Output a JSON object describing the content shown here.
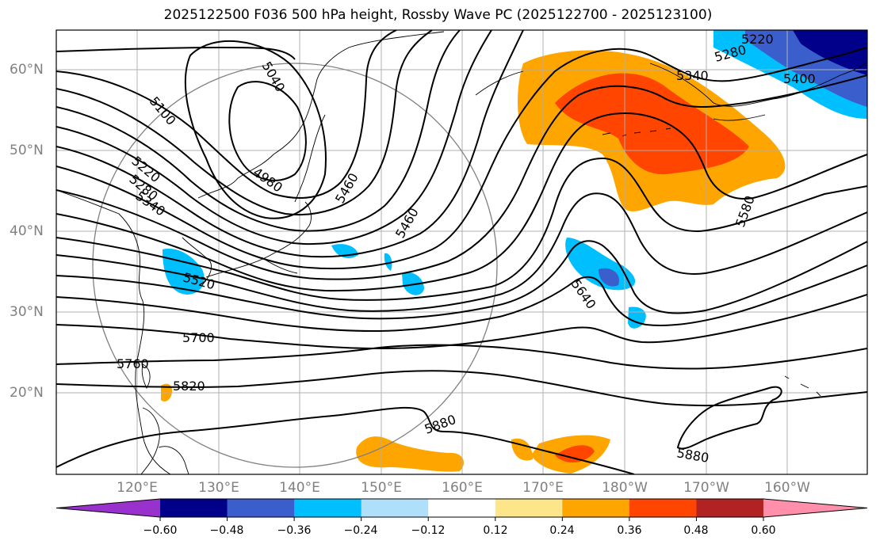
{
  "title": "2025122500 F036 500 hPa height, Rossby Wave PC (2025122700 - 2025123100)",
  "lat_labels": [
    "60°N",
    "50°N",
    "40°N",
    "30°N",
    "20°N"
  ],
  "lon_labels": [
    "120°E",
    "130°E",
    "140°E",
    "150°E",
    "160°E",
    "170°E",
    "180°W",
    "170°W",
    "160°W"
  ],
  "contour_labels": [
    "5040",
    "5100",
    "4980",
    "5220",
    "5280",
    "5340",
    "5460",
    "5460",
    "5520",
    "5580",
    "5640",
    "5700",
    "5760",
    "5820",
    "5880",
    "5880",
    "5220",
    "5280",
    "5340",
    "5400"
  ],
  "colorbar": {
    "ticks": [
      "−0.60",
      "−0.48",
      "−0.36",
      "−0.24",
      "−0.12",
      "0.12",
      "0.24",
      "0.36",
      "0.48",
      "0.60"
    ],
    "colors": [
      "#9932cc",
      "#00008b",
      "#3a5fcd",
      "#00bfff",
      "#afe0fa",
      "#ffffff",
      "#fde68a",
      "#ffa500",
      "#ff4500",
      "#b22222",
      "#ff8fab"
    ]
  }
}
